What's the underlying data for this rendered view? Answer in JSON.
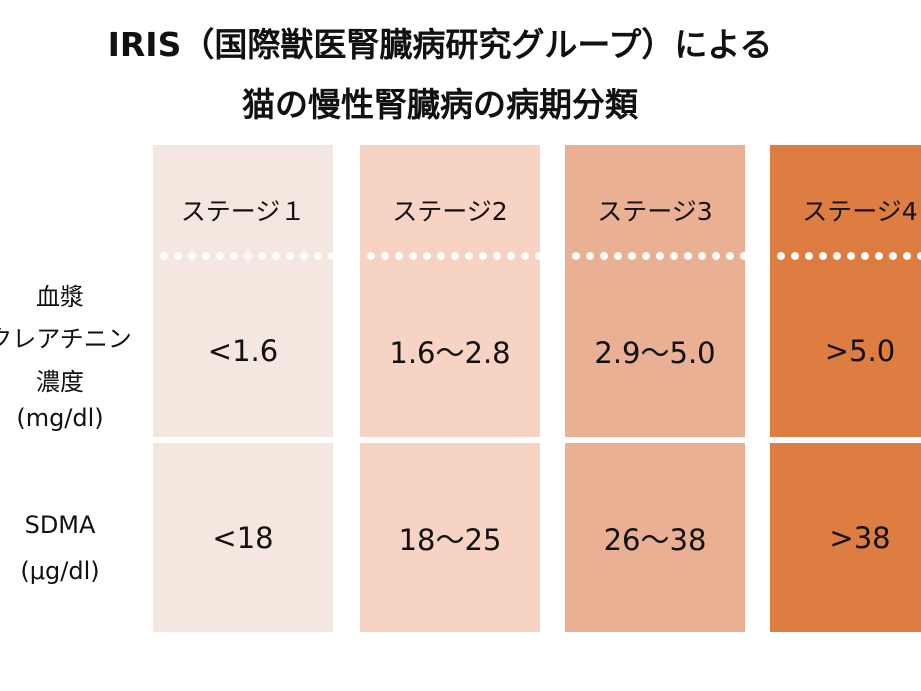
{
  "header": {
    "title_lines": [
      "IRIS（国際獣医腎臓病研究グループ）による",
      "猫の慢性腎臓病の病期分類"
    ]
  },
  "table": {
    "row_labels": [
      [
        "血漿",
        "クレアチニン",
        "濃度",
        "(mg/dl)"
      ],
      [
        "SDMA",
        "(μg/dl)"
      ]
    ],
    "columns": [
      {
        "header": "ステージ１",
        "cells": [
          "<1.6",
          "<18"
        ]
      },
      {
        "header": "ステージ2",
        "cells": [
          "1.6〜2.8",
          "18〜25"
        ]
      },
      {
        "header": "ステージ3",
        "cells": [
          "2.9〜5.0",
          "26〜38"
        ]
      },
      {
        "header": "ステージ4",
        "cells": [
          ">5.0",
          ">38"
        ]
      }
    ]
  }
}
